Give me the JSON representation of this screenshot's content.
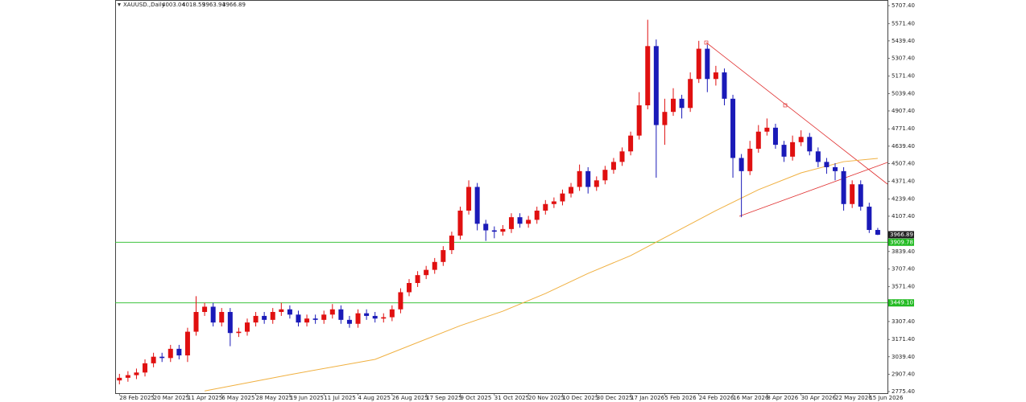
{
  "chart_data": {
    "type": "candlestick",
    "title": "XAUUSD.,Daily",
    "up_color": "#e01010",
    "down_color": "#1a1ab8",
    "categories": [
      "28 Feb 2025",
      null,
      null,
      null,
      "20 Mar 2025",
      null,
      null,
      null,
      "11 Apr 2025",
      null,
      null,
      null,
      "6 May 2025",
      null,
      null,
      null,
      "28 May 2025",
      null,
      null,
      null,
      "19 Jun 2025",
      null,
      null,
      null,
      "11 Jul 2025",
      null,
      null,
      null,
      "4 Aug 2025",
      null,
      null,
      null,
      "26 Aug 2025",
      null,
      null,
      null,
      "17 Sep 2025",
      null,
      null,
      null,
      "9 Oct 2025",
      null,
      null,
      null,
      "31 Oct 2025",
      null,
      null,
      null,
      "20 Nov 2025",
      null,
      null,
      null,
      "10 Dec 2025",
      null,
      null,
      null,
      "30 Dec 2025",
      null,
      null,
      null,
      "17 Jan 2026",
      null,
      null,
      null,
      "5 Feb 2026",
      null,
      null,
      null,
      "24 Feb 2026",
      null,
      null,
      null,
      "16 Mar 2026",
      null,
      null,
      null,
      "8 Apr 2026",
      null,
      null,
      null,
      "30 Apr 2026",
      null,
      null,
      null,
      "22 May 2026",
      null,
      null,
      null,
      "15 Jun 2026",
      null
    ],
    "open": [
      2860,
      2880,
      2900,
      2920,
      2990,
      3040,
      3030,
      3100,
      3050,
      3230,
      3380,
      3420,
      3300,
      3380,
      3220,
      3230,
      3300,
      3350,
      3320,
      3380,
      3400,
      3360,
      3300,
      3330,
      3320,
      3360,
      3400,
      3320,
      3290,
      3370,
      3350,
      3330,
      3340,
      3400,
      3530,
      3600,
      3660,
      3700,
      3760,
      3850,
      3960,
      4150,
      4330,
      4050,
      4000,
      3990,
      4010,
      4100,
      4050,
      4080,
      4150,
      4200,
      4220,
      4280,
      4330,
      4450,
      4330,
      4380,
      4460,
      4520,
      4600,
      4720,
      4950,
      5400,
      4800,
      4900,
      5000,
      4930,
      5150,
      5380,
      5150,
      5200,
      5000,
      4550,
      4450,
      4620,
      4750,
      4780,
      4650,
      4560,
      4670,
      4710,
      4600,
      4520,
      4480,
      4450,
      4200,
      4350,
      4180,
      4003.04
    ],
    "high": [
      2910,
      2930,
      2950,
      3020,
      3070,
      3070,
      3130,
      3130,
      3260,
      3500,
      3450,
      3450,
      3410,
      3410,
      3260,
      3330,
      3380,
      3380,
      3410,
      3450,
      3430,
      3390,
      3360,
      3360,
      3390,
      3440,
      3430,
      3350,
      3400,
      3400,
      3380,
      3370,
      3430,
      3560,
      3630,
      3690,
      3730,
      3790,
      3880,
      3990,
      4180,
      4380,
      4360,
      4080,
      4030,
      4040,
      4130,
      4130,
      4110,
      4180,
      4230,
      4250,
      4310,
      4360,
      4500,
      4480,
      4410,
      4490,
      4550,
      4630,
      4750,
      5050,
      5600,
      5450,
      5000,
      5080,
      5030,
      5200,
      5440,
      5410,
      5250,
      5230,
      5030,
      4580,
      4680,
      4800,
      4850,
      4810,
      4680,
      4720,
      4760,
      4740,
      4630,
      4550,
      4510,
      4480,
      4380,
      4380,
      4210,
      4018.59
    ],
    "low": [
      2830,
      2850,
      2870,
      2890,
      2960,
      3000,
      3000,
      3020,
      3000,
      3200,
      3350,
      3270,
      3270,
      3120,
      3190,
      3200,
      3270,
      3290,
      3290,
      3350,
      3330,
      3270,
      3270,
      3290,
      3290,
      3330,
      3290,
      3260,
      3260,
      3320,
      3300,
      3300,
      3310,
      3370,
      3500,
      3570,
      3630,
      3670,
      3730,
      3820,
      3930,
      4120,
      4000,
      3920,
      3940,
      3960,
      3980,
      4020,
      4020,
      4050,
      4120,
      4170,
      4190,
      4250,
      4300,
      4280,
      4300,
      4350,
      4430,
      4490,
      4570,
      4690,
      4920,
      4400,
      4650,
      4870,
      4850,
      4900,
      5120,
      5050,
      5100,
      4950,
      4400,
      4100,
      4420,
      4590,
      4720,
      4620,
      4520,
      4530,
      4640,
      4570,
      4480,
      4430,
      4380,
      4150,
      4170,
      4150,
      3980,
      3963.94
    ],
    "close": [
      2880,
      2900,
      2920,
      2990,
      3040,
      3030,
      3100,
      3050,
      3230,
      3380,
      3420,
      3300,
      3380,
      3220,
      3230,
      3300,
      3350,
      3320,
      3380,
      3400,
      3360,
      3300,
      3330,
      3320,
      3360,
      3400,
      3320,
      3290,
      3370,
      3350,
      3330,
      3340,
      3400,
      3530,
      3600,
      3660,
      3700,
      3760,
      3850,
      3960,
      4150,
      4330,
      4050,
      4000,
      3990,
      4010,
      4100,
      4050,
      4080,
      4150,
      4200,
      4220,
      4280,
      4330,
      4450,
      4330,
      4380,
      4460,
      4520,
      4600,
      4720,
      4950,
      5400,
      4800,
      4900,
      5000,
      4930,
      5150,
      5380,
      5150,
      5200,
      5000,
      4550,
      4450,
      4620,
      4750,
      4780,
      4650,
      4560,
      4670,
      4710,
      4600,
      4520,
      4480,
      4450,
      4200,
      4350,
      4180,
      4003.04,
      3966.89
    ],
    "ma": {
      "color": "#f0b040",
      "x": [
        10,
        20,
        30,
        40,
        45,
        50,
        55,
        60,
        65,
        70,
        75,
        80,
        85,
        89
      ],
      "values": [
        2780,
        2904,
        3020,
        3276,
        3386,
        3520,
        3673,
        3808,
        3979,
        4150,
        4309,
        4437,
        4522,
        4547
      ]
    },
    "levels": [
      {
        "value": 3909.78,
        "label": "3909.78"
      },
      {
        "value": 3449.1,
        "label": "3449.10"
      }
    ],
    "level_color": "#22bb22",
    "ylim": [
      2775.4,
      5707.4
    ],
    "yticks": [
      {
        "value": 5707.4,
        "label": "5707.40"
      },
      {
        "value": 5571.4,
        "label": "5571.40"
      },
      {
        "value": 5439.4,
        "label": "5439.40"
      },
      {
        "value": 5307.4,
        "label": "5307.40"
      },
      {
        "value": 5171.4,
        "label": "5171.40"
      },
      {
        "value": 5039.4,
        "label": "5039.40"
      },
      {
        "value": 4907.4,
        "label": "4907.40"
      },
      {
        "value": 4771.4,
        "label": "4771.40"
      },
      {
        "value": 4639.4,
        "label": "4639.40"
      },
      {
        "value": 4507.4,
        "label": "4507.40"
      },
      {
        "value": 4371.4,
        "label": "4371.40"
      },
      {
        "value": 4239.4,
        "label": "4239.40"
      },
      {
        "value": 4107.4,
        "label": "4107.40"
      },
      {
        "value": 3839.4,
        "label": "3839.40"
      },
      {
        "value": 3707.4,
        "label": "3707.40"
      },
      {
        "value": 3571.4,
        "label": "3571.40"
      },
      {
        "value": 3307.4,
        "label": "3307.40"
      },
      {
        "value": 3171.4,
        "label": "3171.40"
      },
      {
        "value": 3039.4,
        "label": "3039.40"
      },
      {
        "value": 2907.4,
        "label": "2907.40"
      },
      {
        "value": 2775.4,
        "label": "2775.40"
      }
    ]
  }
}
